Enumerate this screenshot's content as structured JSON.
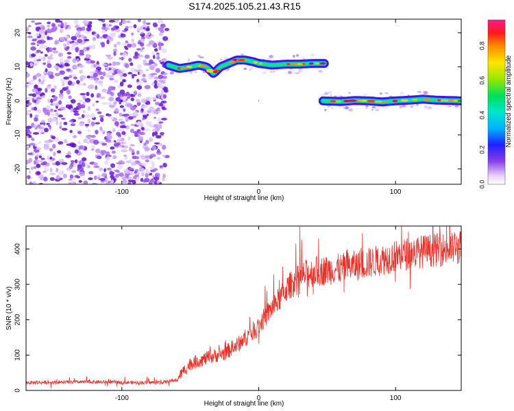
{
  "title": "S174.2025.105.21.43.R15",
  "colors": {
    "snr_line": "#e8312a",
    "background": "#ffffff",
    "colormap": [
      "#d9b3f7",
      "#9a4fe0",
      "#5a10e0",
      "#1b1bff",
      "#00a8ff",
      "#00e5e5",
      "#00e070",
      "#7be000",
      "#e6e600",
      "#ffaa00",
      "#ff3300",
      "#e60066",
      "#ff1a8c"
    ]
  },
  "chart_data": [
    {
      "type": "heatmap",
      "xlabel": "Height of straight line (km)",
      "ylabel": "Frequency (Hz)",
      "xlim": [
        -170,
        148
      ],
      "ylim": [
        -24.5,
        24
      ],
      "xticks": [
        -100,
        0,
        100
      ],
      "yticks": [
        -20,
        -10,
        0,
        10,
        20
      ],
      "grid": false,
      "colorbar": {
        "label": "Normalized spectral amplitude",
        "range": [
          0.0,
          0.95
        ],
        "ticks": [
          0.0,
          0.2,
          0.4,
          0.6,
          0.8
        ]
      },
      "noise_region": {
        "x_range": [
          -170,
          -67
        ],
        "y_range": [
          -24.5,
          24
        ],
        "amplitude_range": [
          0.0,
          0.1
        ]
      },
      "ridge_segments": [
        {
          "x": [
            -66,
            -58,
            -50,
            -44,
            -38,
            -33,
            -28,
            -22,
            -16,
            -10,
            -4,
            0,
            10,
            20,
            30,
            40,
            48
          ],
          "y": [
            10.5,
            9.5,
            10,
            10.5,
            10,
            8,
            10,
            11,
            12,
            12,
            11.5,
            11,
            10.5,
            10.8,
            10.8,
            11,
            11
          ]
        },
        {
          "x": [
            47,
            60,
            70,
            80,
            90,
            100,
            110,
            120,
            130,
            140,
            148
          ],
          "y": [
            0,
            -0.2,
            0.1,
            0,
            -0.3,
            0,
            0.2,
            0.5,
            0.2,
            0.1,
            0
          ]
        }
      ]
    },
    {
      "type": "line",
      "xlabel": "Height of straight line (km)",
      "ylabel": "SNR (10 * v/v)",
      "xlim": [
        -170,
        148
      ],
      "ylim": [
        0,
        465
      ],
      "xticks": [
        -100,
        0,
        100
      ],
      "yticks": [
        0,
        100,
        200,
        300,
        400
      ],
      "grid": false,
      "series": [
        {
          "x": [
            -170,
            -150,
            -130,
            -110,
            -90,
            -70,
            -60,
            -55,
            -50,
            -45,
            -40,
            -35,
            -30,
            -25,
            -20,
            -15,
            -10,
            -5,
            0,
            5,
            10,
            15,
            20,
            25,
            30,
            35,
            40,
            50,
            60,
            70,
            80,
            90,
            100,
            110,
            120,
            130,
            140,
            148
          ],
          "values": [
            22,
            23,
            24,
            24,
            22,
            23,
            30,
            55,
            75,
            82,
            88,
            95,
            100,
            105,
            118,
            130,
            148,
            165,
            182,
            210,
            235,
            258,
            285,
            305,
            318,
            330,
            335,
            340,
            345,
            352,
            360,
            370,
            380,
            388,
            393,
            398,
            400,
            405
          ]
        }
      ]
    }
  ]
}
